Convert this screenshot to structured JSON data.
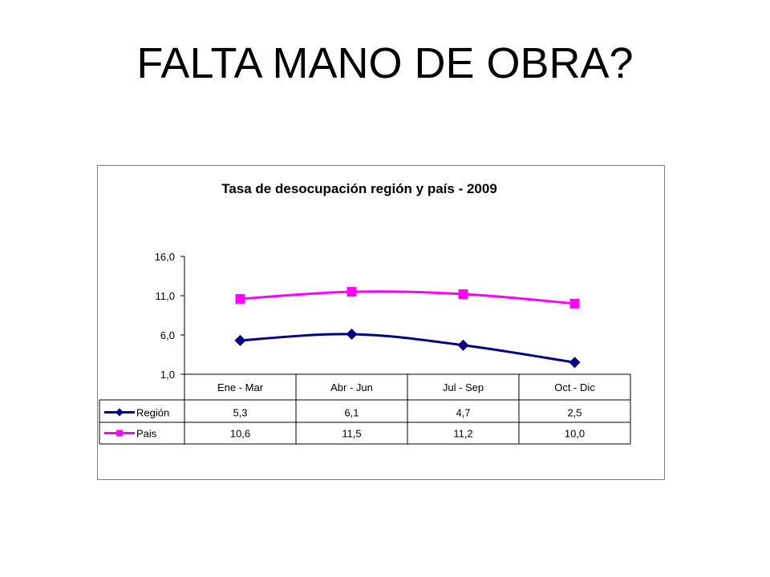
{
  "slide": {
    "title": "FALTA MANO DE OBRA?"
  },
  "chart_data": {
    "type": "line",
    "title": "Tasa de desocupación región y país - 2009",
    "xlabel": "",
    "ylabel": "",
    "categories": [
      "Ene - Mar",
      "Abr - Jun",
      "Jul - Sep",
      "Oct - Dic"
    ],
    "ylim": [
      1.0,
      16.0
    ],
    "yticks": [
      "16,0",
      "11,0",
      "6,0",
      "1,0"
    ],
    "yticks_values": [
      16,
      11,
      6,
      1
    ],
    "series": [
      {
        "name": "Región",
        "values": [
          5.3,
          6.1,
          4.7,
          2.5
        ],
        "labels": [
          "5,3",
          "6,1",
          "4,7",
          "2,5"
        ],
        "color": "#000080",
        "marker": "diamond"
      },
      {
        "name": "Pais",
        "values": [
          10.6,
          11.5,
          11.2,
          10.0
        ],
        "labels": [
          "10,6",
          "11,5",
          "11,2",
          "10,0"
        ],
        "color": "#FF00FF",
        "marker": "square"
      }
    ],
    "grid": false,
    "legend": "data-table-left"
  }
}
